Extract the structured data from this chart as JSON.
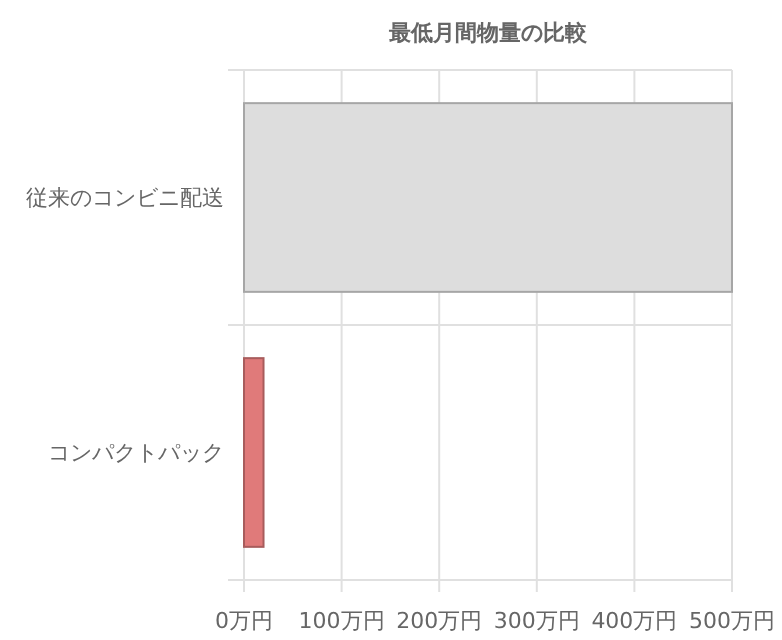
{
  "chart_data": {
    "type": "bar",
    "orientation": "horizontal",
    "title": "最低月間物量の比較",
    "categories": [
      "従来のコンビニ配送",
      "コンパクトパック"
    ],
    "values": [
      500,
      20
    ],
    "colors": [
      "#dddddd",
      "#e07a7a"
    ],
    "xlim": [
      0,
      500
    ],
    "xticks": [
      {
        "value": 0,
        "label": "0万円"
      },
      {
        "value": 100,
        "label": "100万円"
      },
      {
        "value": 200,
        "label": "200万円"
      },
      {
        "value": 300,
        "label": "300万円"
      },
      {
        "value": 400,
        "label": "400万円"
      },
      {
        "value": 500,
        "label": "500万円"
      }
    ],
    "grid": true
  }
}
